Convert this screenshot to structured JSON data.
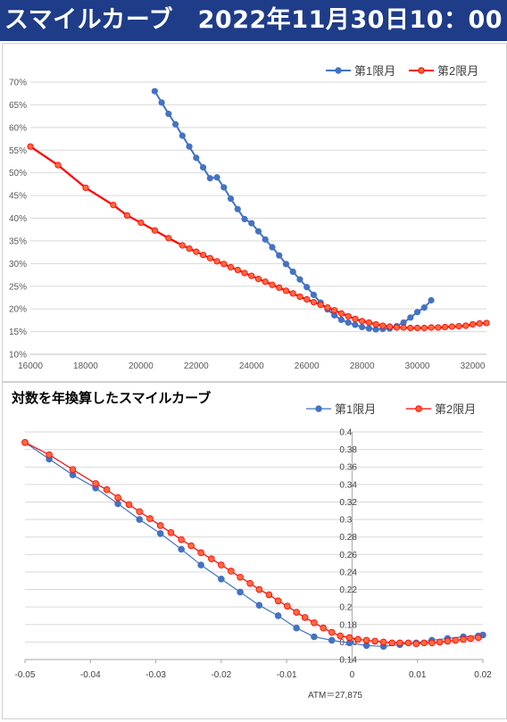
{
  "header": {
    "title": "スマイルカーブ　2022年11月30日10：00"
  },
  "colors": {
    "series1": "#4472c4",
    "series2": "#ff0000",
    "series2_marker_fill": "#ff6a3d",
    "grid": "#d9d9d9",
    "header_bg": "#1f3c88"
  },
  "chart1": {
    "type": "line",
    "xlim": [
      16000,
      32500
    ],
    "ylim": [
      10,
      70
    ],
    "x_ticks": [
      "16000",
      "18000",
      "20000",
      "22000",
      "24000",
      "26000",
      "28000",
      "30000",
      "32000"
    ],
    "y_ticks": [
      "10%",
      "15%",
      "20%",
      "25%",
      "30%",
      "35%",
      "40%",
      "45%",
      "50%",
      "55%",
      "60%",
      "65%",
      "70%"
    ],
    "legend_position": "top-right",
    "series": [
      {
        "name": "第1限月",
        "x": [
          20500,
          20750,
          21000,
          21250,
          21500,
          21750,
          22000,
          22250,
          22500,
          22750,
          23000,
          23250,
          23500,
          23750,
          24000,
          24250,
          24500,
          24750,
          25000,
          25250,
          25500,
          25750,
          26000,
          26250,
          26500,
          26750,
          27000,
          27250,
          27500,
          27750,
          28000,
          28250,
          28500,
          28750,
          29000,
          29250,
          29500,
          29750,
          30000,
          30250,
          30500
        ],
        "y": [
          68,
          65.5,
          63,
          60.7,
          58.2,
          55.8,
          53.3,
          51.2,
          48.8,
          49,
          46.8,
          44.3,
          42,
          39.8,
          38.9,
          37.1,
          35.3,
          33.6,
          31.8,
          29.9,
          28.2,
          26.5,
          24.8,
          23.1,
          21.4,
          19.9,
          18.6,
          17.6,
          17,
          16.5,
          16,
          15.7,
          15.5,
          15.6,
          15.7,
          16.2,
          17,
          18.1,
          19.3,
          20.3,
          21.9
        ]
      },
      {
        "name": "第2限月",
        "x": [
          16000,
          17000,
          18000,
          19000,
          19500,
          20000,
          20500,
          21000,
          21500,
          21750,
          22000,
          22250,
          22500,
          22750,
          23000,
          23250,
          23500,
          23750,
          24000,
          24250,
          24500,
          24750,
          25000,
          25250,
          25500,
          25750,
          26000,
          26250,
          26500,
          26750,
          27000,
          27250,
          27500,
          27750,
          28000,
          28250,
          28500,
          28750,
          29000,
          29250,
          29500,
          29750,
          30000,
          30250,
          30500,
          30750,
          31000,
          31250,
          31500,
          31750,
          32000,
          32250,
          32500
        ],
        "y": [
          55.8,
          51.7,
          46.7,
          42.9,
          40.6,
          39,
          37.3,
          35.6,
          34,
          33.3,
          32.6,
          31.9,
          31.2,
          30.5,
          29.9,
          29.2,
          28.6,
          27.9,
          27.3,
          26.6,
          26,
          25.3,
          24.7,
          24,
          23.4,
          22.7,
          22.1,
          21.5,
          20.9,
          20.3,
          19.7,
          19,
          18.4,
          17.8,
          17.3,
          17,
          16.6,
          16.3,
          16.1,
          15.9,
          15.9,
          15.8,
          15.8,
          15.8,
          15.9,
          15.9,
          16,
          16.1,
          16.2,
          16.3,
          16.6,
          16.8,
          16.9
        ]
      }
    ]
  },
  "chart2": {
    "type": "line",
    "title": "対数を年換算したスマイルカーブ",
    "xlim": [
      -0.05,
      0.02
    ],
    "ylim": [
      0.14,
      0.4
    ],
    "x_ticks": [
      "-0.05",
      "-0.04",
      "-0.03",
      "-0.02",
      "-0.01",
      "0",
      "0.01",
      "0.02"
    ],
    "y_ticks": [
      "0.14",
      "0.16",
      "0.18",
      "0.2",
      "0.22",
      "0.24",
      "0.26",
      "0.28",
      "0.3",
      "0.32",
      "0.34",
      "0.36",
      "0.38",
      "0.4"
    ],
    "legend_position": "top-right",
    "annotation": "ATM＝27,875",
    "series": [
      {
        "name": "第1限月",
        "x": [
          -0.05,
          -0.0463,
          -0.0427,
          -0.0392,
          -0.0358,
          -0.0325,
          -0.0293,
          -0.0261,
          -0.0231,
          -0.02,
          -0.0171,
          -0.0142,
          -0.0113,
          -0.0085,
          -0.0058,
          -0.0031,
          -0.0004,
          0.0022,
          0.0048,
          0.0073,
          0.0098,
          0.0122,
          0.0146,
          0.017,
          0.0193,
          0.02
        ],
        "y": [
          0.388,
          0.369,
          0.351,
          0.336,
          0.318,
          0.3,
          0.284,
          0.266,
          0.248,
          0.232,
          0.217,
          0.202,
          0.19,
          0.176,
          0.166,
          0.162,
          0.159,
          0.156,
          0.155,
          0.157,
          0.159,
          0.162,
          0.164,
          0.166,
          0.167,
          0.168
        ]
      },
      {
        "name": "第2限月",
        "x": [
          -0.05,
          -0.0463,
          -0.0427,
          -0.0392,
          -0.0375,
          -0.0358,
          -0.0341,
          -0.0325,
          -0.0309,
          -0.0293,
          -0.0277,
          -0.0261,
          -0.0246,
          -0.0231,
          -0.0215,
          -0.02,
          -0.0185,
          -0.0171,
          -0.0156,
          -0.0142,
          -0.0127,
          -0.0113,
          -0.0099,
          -0.0085,
          -0.0072,
          -0.0058,
          -0.0044,
          -0.0031,
          -0.0018,
          -0.0004,
          0.0009,
          0.0022,
          0.0035,
          0.0048,
          0.0061,
          0.0073,
          0.0086,
          0.0098,
          0.011,
          0.0122,
          0.0134,
          0.0146,
          0.0158,
          0.017,
          0.0181,
          0.0193
        ],
        "y": [
          0.388,
          0.374,
          0.357,
          0.341,
          0.334,
          0.325,
          0.317,
          0.309,
          0.301,
          0.293,
          0.285,
          0.277,
          0.27,
          0.262,
          0.255,
          0.248,
          0.241,
          0.234,
          0.227,
          0.22,
          0.214,
          0.207,
          0.201,
          0.194,
          0.188,
          0.182,
          0.176,
          0.171,
          0.167,
          0.165,
          0.163,
          0.162,
          0.161,
          0.16,
          0.159,
          0.159,
          0.159,
          0.158,
          0.159,
          0.159,
          0.16,
          0.161,
          0.162,
          0.163,
          0.164,
          0.165
        ]
      }
    ]
  }
}
